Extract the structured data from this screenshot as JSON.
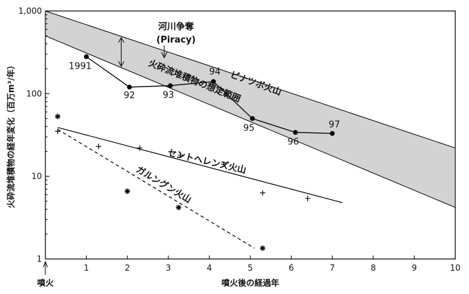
{
  "chart_data": {
    "type": "scatter",
    "xlabel": "噴火後の経過年",
    "ylabel": "火砕流堆積物の経年変化（百万m³/年）",
    "xlim": [
      0,
      10
    ],
    "ylim": [
      1,
      1000
    ],
    "yscale": "log",
    "x_ticks": [
      1,
      2,
      3,
      4,
      5,
      6,
      7,
      8,
      9,
      10
    ],
    "x_tick_labels": [
      "1",
      "2",
      "3",
      "4",
      "5",
      "6",
      "7",
      "8",
      "9",
      "10"
    ],
    "y_ticks": [
      1,
      10,
      100,
      1000
    ],
    "y_tick_labels": [
      "1",
      "10",
      "100",
      "1,000"
    ],
    "eruption_marker": {
      "x": 0,
      "label": "噴火"
    },
    "band": {
      "label": "火砕流堆積物の想定範囲",
      "upper": [
        [
          0,
          1000
        ],
        [
          10,
          22
        ]
      ],
      "lower": [
        [
          0,
          500
        ],
        [
          10,
          4.2
        ]
      ]
    },
    "piracy": {
      "label": "河川争奪",
      "sublabel": "(Piracy)",
      "x": 2.9
    },
    "series": [
      {
        "name": "ピナツボ火山",
        "style": "dot-line",
        "x": [
          1.0,
          2.05,
          3.05,
          4.1,
          5.05,
          6.1,
          7.0
        ],
        "y": [
          280,
          120,
          125,
          140,
          50,
          34,
          33
        ],
        "point_labels": [
          "1991",
          "92",
          "93",
          "94",
          "95",
          "96",
          "97"
        ]
      },
      {
        "name": "セントヘレンズ火山",
        "style": "plus",
        "x": [
          0.3,
          1.3,
          2.3,
          3.3,
          4.35,
          5.3,
          6.4
        ],
        "y": [
          35,
          23,
          22,
          18,
          14,
          6.3,
          5.4
        ],
        "fit": [
          [
            0.3,
            39
          ],
          [
            7.25,
            4.8
          ]
        ]
      },
      {
        "name": "ガルングン火山",
        "style": "asterisk",
        "x": [
          0.3,
          2.0,
          3.25,
          5.3
        ],
        "y": [
          53,
          6.6,
          4.2,
          1.35
        ],
        "fit": [
          [
            0.3,
            37
          ],
          [
            5.1,
            1.35
          ]
        ]
      }
    ]
  }
}
